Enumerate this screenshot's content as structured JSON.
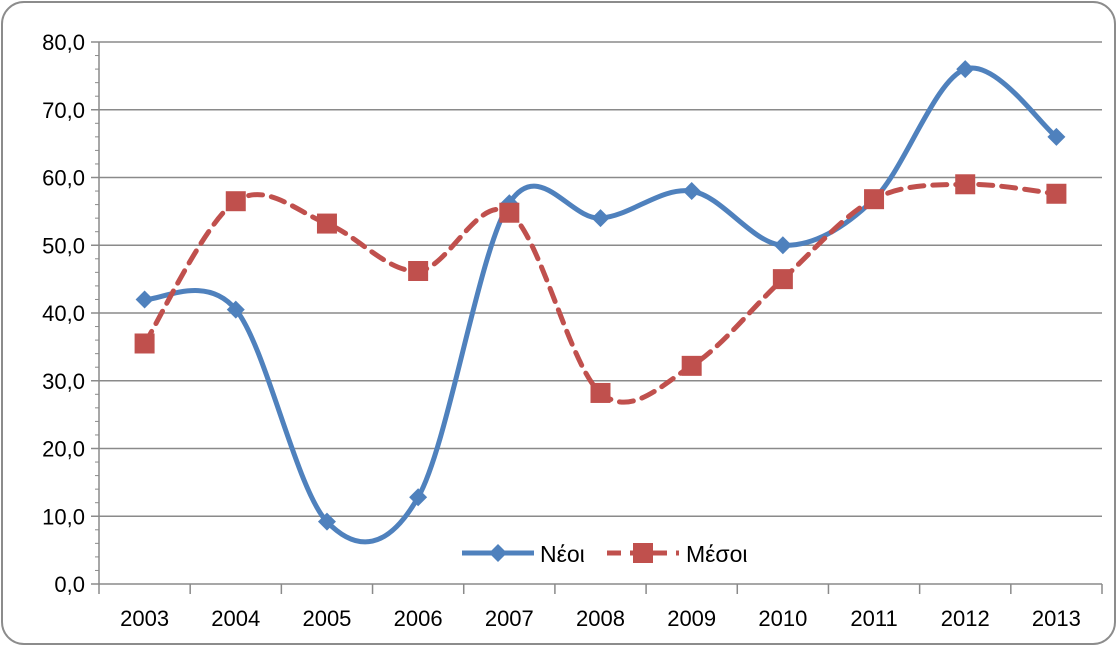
{
  "chart_data": {
    "type": "line",
    "smooth": true,
    "categories": [
      "2003",
      "2004",
      "2005",
      "2006",
      "2007",
      "2008",
      "2009",
      "2010",
      "2011",
      "2012",
      "2013"
    ],
    "series": [
      {
        "name": "Νέοι",
        "values": [
          42.0,
          40.5,
          9.2,
          12.8,
          56.2,
          54.0,
          58.0,
          50.0,
          56.8,
          76.0,
          66.0
        ],
        "color": "#4F81BD",
        "marker": "diamond",
        "dash": "solid"
      },
      {
        "name": "Μέσοι",
        "values": [
          35.5,
          56.5,
          53.2,
          46.2,
          54.8,
          28.2,
          32.2,
          45.0,
          56.8,
          59.0,
          57.6
        ],
        "color": "#C0504D",
        "marker": "square",
        "dash": "dashed"
      }
    ],
    "ylim": [
      0,
      80
    ],
    "y_ticks": [
      "0,0",
      "10,0",
      "20,0",
      "30,0",
      "40,0",
      "50,0",
      "60,0",
      "70,0",
      "80,0"
    ],
    "grid": true,
    "legend_position": "bottom-center-inside"
  }
}
